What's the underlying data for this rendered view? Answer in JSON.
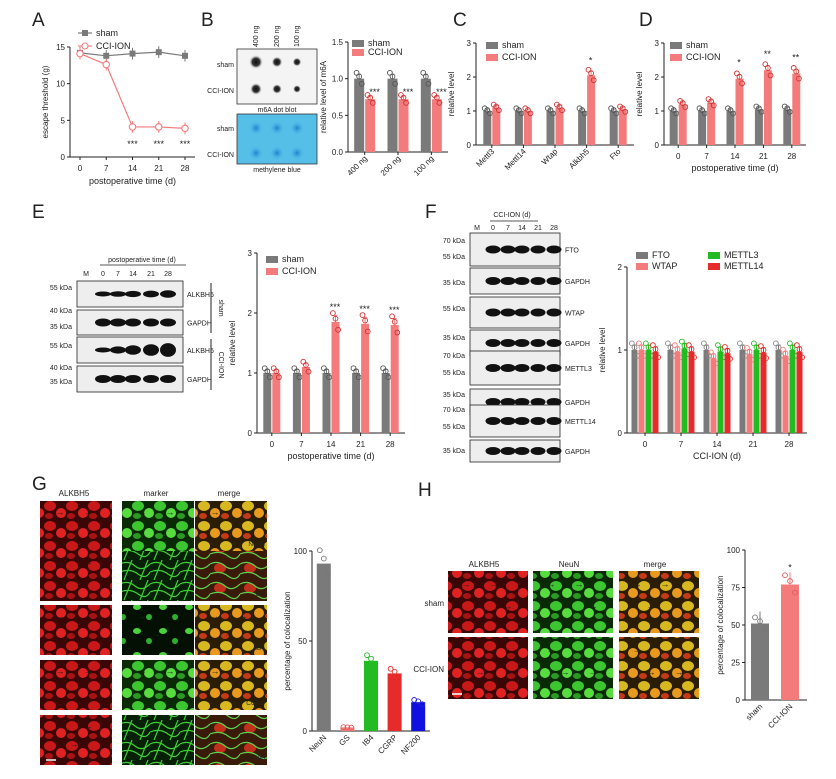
{
  "colors": {
    "sham": "#7a7a7a",
    "cci": "#f47b7b",
    "green": "#22bb22",
    "red": "#e62b2b",
    "blue": "#1010e0",
    "ns": "#d03030"
  },
  "panels": {
    "A": {
      "letter": "A",
      "ylabel": "escape threshold (g)",
      "xlabel": "postoperative time (d)",
      "legend": [
        "sham",
        "CCI-ION"
      ],
      "sig": [
        "***",
        "***",
        "***"
      ]
    },
    "B": {
      "letter": "B",
      "lanes": [
        "400 ng",
        "200 ng",
        "100 ng"
      ],
      "rows_top": [
        "sham",
        "CCI-ION"
      ],
      "caption_top": "m6A dot blot",
      "rows_bottom": [
        "sham",
        "CCI-ION"
      ],
      "caption_bottom": "methylene blue",
      "ylabel": "relative level of m6A",
      "legend": [
        "sham",
        "CCI-ION"
      ],
      "sig": [
        "***",
        "***",
        "***"
      ]
    },
    "C": {
      "letter": "C",
      "ylabel": "relative level",
      "legend": [
        "sham",
        "CCI-ION"
      ],
      "sig": "*"
    },
    "D": {
      "letter": "D",
      "ylabel": "relative level",
      "xlabel": "postoperative time (d)",
      "legend": [
        "sham",
        "CCI-ION"
      ],
      "sig": [
        "*",
        "**",
        "**"
      ]
    },
    "E": {
      "letter": "E",
      "blot_title": "postoperative time (d)",
      "lanes": [
        "M",
        "0",
        "7",
        "14",
        "21",
        "28"
      ],
      "markers": [
        "55 kDa",
        "40 kDa",
        "35 kDa",
        "55 kDa",
        "40 kDa",
        "35 kDa"
      ],
      "bands": [
        "ALKBH5",
        "GAPDH",
        "ALKBH5",
        "GAPDH"
      ],
      "groups": [
        "sham",
        "CCI-ION"
      ],
      "ylabel": "relative level",
      "xlabel": "postoperative time (d)",
      "legend": [
        "sham",
        "CCI-ION"
      ],
      "sig": [
        "***",
        "***",
        "***"
      ]
    },
    "F": {
      "letter": "F",
      "blot_title": "CCI-ION (d)",
      "lanes": [
        "M",
        "0",
        "7",
        "14",
        "21",
        "28"
      ],
      "markers": [
        "70 kDa",
        "55 kDa",
        "35 kDa",
        "55 kDa",
        "35 kDa",
        "70 kDa",
        "55 kDa",
        "35 kDa",
        "70 kDa",
        "55 kDa",
        "35 kDa"
      ],
      "bands": [
        "FTO",
        "GAPDH",
        "WTAP",
        "GAPDH",
        "METTL3",
        "GAPDH",
        "METTL14",
        "GAPDH"
      ],
      "ylabel": "relative level",
      "xlabel": "CCI-ION (d)",
      "legend": [
        "FTO",
        "WTAP",
        "METTL3",
        "METTL14"
      ]
    },
    "G": {
      "letter": "G",
      "headers": [
        "ALKBH5",
        "marker",
        "merge"
      ],
      "markers": [
        "NeuN",
        "GS",
        "IB4",
        "CGRP",
        "NF200"
      ],
      "ylabel": "percentage of colocalization"
    },
    "H": {
      "letter": "H",
      "headers": [
        "ALKBH5",
        "NeuN",
        "merge"
      ],
      "rows": [
        "sham",
        "CCI-ION"
      ],
      "ylabel": "percentage of colocalization",
      "sig": "*"
    }
  },
  "chart_data": [
    {
      "panel": "A",
      "type": "line",
      "x": [
        0,
        7,
        14,
        21,
        28
      ],
      "xlabel": "postoperative time (d)",
      "ylabel": "escape threshold (g)",
      "ylim": [
        0,
        15
      ],
      "yticks": [
        0,
        5,
        10,
        15
      ],
      "series": [
        {
          "name": "sham",
          "values": [
            14.2,
            13.8,
            14.1,
            14.3,
            13.8
          ]
        },
        {
          "name": "CCI-ION",
          "values": [
            14.1,
            12.6,
            4.1,
            4.1,
            3.9
          ]
        }
      ]
    },
    {
      "panel": "B",
      "type": "bar",
      "categories": [
        "400 ng",
        "200 ng",
        "100 ng"
      ],
      "ylabel": "relative level of m6A",
      "ylim": [
        0,
        1.5
      ],
      "yticks": [
        0,
        0.5,
        1.0,
        1.5
      ],
      "series": [
        {
          "name": "sham",
          "values": [
            1.0,
            1.0,
            1.0
          ]
        },
        {
          "name": "CCI-ION",
          "values": [
            0.72,
            0.72,
            0.72
          ]
        }
      ]
    },
    {
      "panel": "C",
      "type": "bar",
      "categories": [
        "Mettl3",
        "Mettl14",
        "Wtap",
        "Alkbh5",
        "Fto"
      ],
      "ylabel": "relative level",
      "ylim": [
        0,
        3
      ],
      "yticks": [
        0,
        1,
        2,
        3
      ],
      "series": [
        {
          "name": "sham",
          "values": [
            1.0,
            1.0,
            1.0,
            1.0,
            1.0
          ]
        },
        {
          "name": "CCI-ION",
          "values": [
            1.1,
            1.0,
            1.1,
            2.05,
            1.05
          ]
        }
      ]
    },
    {
      "panel": "D",
      "type": "bar",
      "categories": [
        "0",
        "7",
        "14",
        "21",
        "28"
      ],
      "xlabel": "postoperative time (d)",
      "ylabel": "relative level",
      "ylim": [
        0,
        3
      ],
      "yticks": [
        0,
        1,
        2,
        3
      ],
      "series": [
        {
          "name": "sham",
          "values": [
            1.0,
            1.0,
            1.0,
            1.05,
            1.05
          ]
        },
        {
          "name": "CCI-ION",
          "values": [
            1.2,
            1.25,
            1.95,
            2.2,
            2.1
          ]
        }
      ]
    },
    {
      "panel": "E",
      "type": "bar",
      "categories": [
        "0",
        "7",
        "14",
        "21",
        "28"
      ],
      "xlabel": "postoperative time (d)",
      "ylabel": "relative level",
      "ylim": [
        0,
        3
      ],
      "yticks": [
        0,
        1,
        2,
        3
      ],
      "series": [
        {
          "name": "sham",
          "values": [
            1.0,
            1.0,
            1.0,
            1.0,
            1.0
          ]
        },
        {
          "name": "CCI-ION",
          "values": [
            1.0,
            1.1,
            1.85,
            1.82,
            1.8
          ]
        }
      ]
    },
    {
      "panel": "F",
      "type": "bar",
      "categories": [
        "0",
        "7",
        "14",
        "21",
        "28"
      ],
      "xlabel": "CCI-ION (d)",
      "ylabel": "relative level",
      "ylim": [
        0,
        2
      ],
      "yticks": [
        0,
        1,
        2
      ],
      "series": [
        {
          "name": "FTO",
          "values": [
            1.0,
            1.0,
            1.0,
            1.0,
            1.0
          ]
        },
        {
          "name": "WTAP",
          "values": [
            1.0,
            0.98,
            0.9,
            0.95,
            0.93
          ]
        },
        {
          "name": "METTL3",
          "values": [
            1.0,
            1.02,
            0.98,
            1.0,
            1.0
          ]
        },
        {
          "name": "METTL14",
          "values": [
            0.98,
            0.98,
            0.96,
            0.97,
            0.98
          ]
        }
      ]
    },
    {
      "panel": "G",
      "type": "bar",
      "categories": [
        "NeuN",
        "GS",
        "IB4",
        "CGRP",
        "NF200"
      ],
      "ylabel": "percentage of colocalization",
      "ylim": [
        0,
        100
      ],
      "yticks": [
        0,
        50,
        100
      ],
      "series": [
        {
          "values": [
            93,
            2,
            39,
            32,
            16
          ]
        }
      ]
    },
    {
      "panel": "H",
      "type": "bar",
      "categories": [
        "sham",
        "CCI-ION"
      ],
      "ylabel": "percentage of colocalization",
      "ylim": [
        0,
        100
      ],
      "yticks": [
        0,
        25,
        50,
        75,
        100
      ],
      "series": [
        {
          "values": [
            51,
            77
          ]
        }
      ]
    }
  ]
}
